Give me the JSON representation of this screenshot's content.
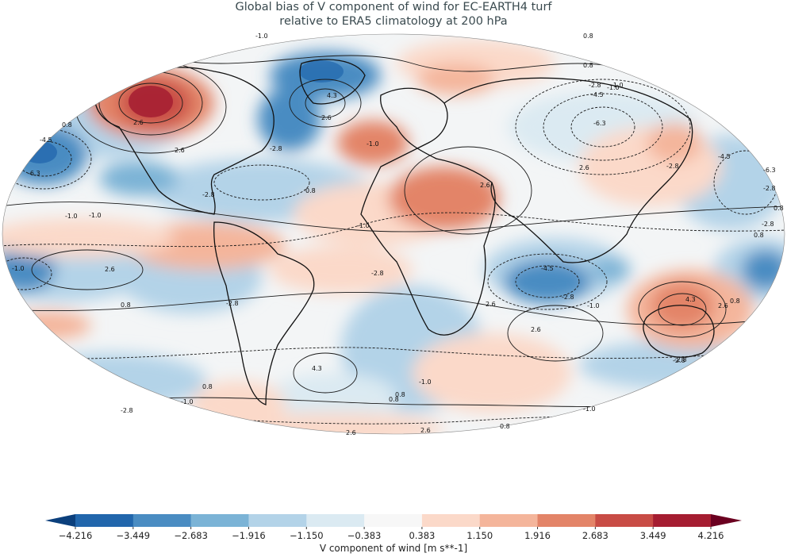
{
  "title": {
    "line1": "Global bias of V component of wind for EC-EARTH4 turf",
    "line2": "relative to ERA5 climatology at 200 hPa"
  },
  "colorbar": {
    "label": "V component of wind [m s**-1]",
    "ticks": [
      "−4.216",
      "−3.449",
      "−2.683",
      "−1.916",
      "−1.150",
      "−0.383",
      "0.383",
      "1.150",
      "1.916",
      "2.683",
      "3.449",
      "4.216"
    ],
    "colors": [
      "#0b3f7c",
      "#2166ac",
      "#4a8cc2",
      "#7bb3d6",
      "#b3d3e8",
      "#dbeaf2",
      "#f7f7f7",
      "#fbd9c9",
      "#f4b59b",
      "#e38468",
      "#c84c45",
      "#a51d31",
      "#6b0020"
    ]
  },
  "contour_labels": [
    {
      "text": "-1.0"
    },
    {
      "text": "0.8"
    },
    {
      "text": "0.8"
    },
    {
      "text": "4.3"
    },
    {
      "text": "2.6"
    },
    {
      "text": "-4.5"
    },
    {
      "text": "-6.3"
    },
    {
      "text": "2.6"
    },
    {
      "text": "0.8"
    },
    {
      "text": "-1.0"
    },
    {
      "text": "-2.8"
    },
    {
      "text": "-1.0"
    },
    {
      "text": "2.6"
    },
    {
      "text": "-2.8"
    },
    {
      "text": "-4.5"
    },
    {
      "text": "-6.3"
    },
    {
      "text": "2.6"
    },
    {
      "text": "-1.0"
    },
    {
      "text": "-2.8"
    },
    {
      "text": "-6.3"
    },
    {
      "text": "-2.8"
    },
    {
      "text": "0.8"
    },
    {
      "text": "-1.0"
    },
    {
      "text": "-2.8"
    },
    {
      "text": "2.6"
    },
    {
      "text": "0.8"
    },
    {
      "text": "-1.0"
    },
    {
      "text": "-4.5"
    },
    {
      "text": "-2.8"
    },
    {
      "text": "-1.0"
    },
    {
      "text": "4.3"
    },
    {
      "text": "2.6"
    },
    {
      "text": "-1.0"
    },
    {
      "text": "0.8"
    },
    {
      "text": "2.6"
    },
    {
      "text": "-2.8"
    },
    {
      "text": "-4.5"
    },
    {
      "text": "0.8"
    },
    {
      "text": "-1.0"
    },
    {
      "text": "-2.8"
    },
    {
      "text": "4.3"
    },
    {
      "text": "-2.8"
    },
    {
      "text": "0.8"
    },
    {
      "text": "2.6"
    },
    {
      "text": "2.6"
    },
    {
      "text": "-1.0"
    },
    {
      "text": "-1.0"
    },
    {
      "text": "0.8"
    },
    {
      "text": "-2.8"
    },
    {
      "text": "2.6"
    },
    {
      "text": "-2.8"
    },
    {
      "text": "0.8"
    },
    {
      "text": "0.8"
    },
    {
      "text": "2.6"
    },
    {
      "text": "-1.0"
    },
    {
      "text": "0.8"
    },
    {
      "text": "-2.8"
    }
  ]
}
